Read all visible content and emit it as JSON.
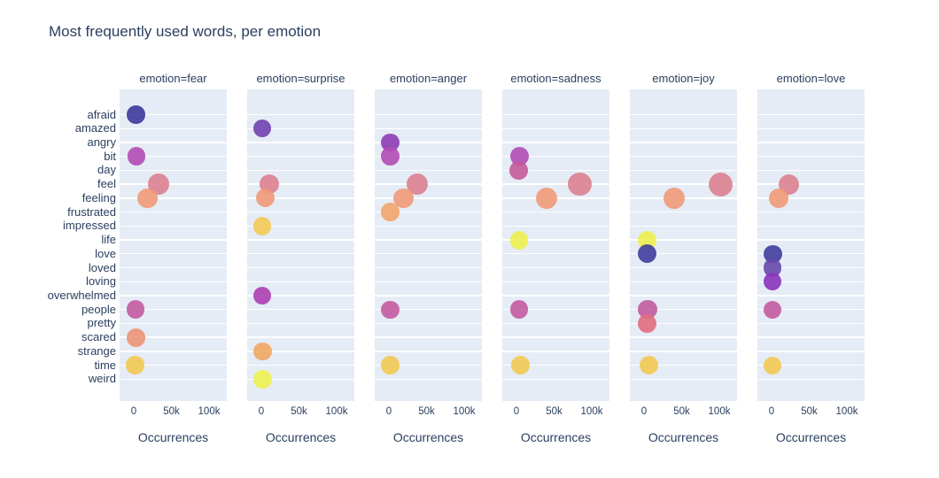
{
  "chart_data": {
    "type": "scatter",
    "title": "Most frequently used words, per emotion",
    "xlabel": "Occurrences",
    "x_ticks": [
      {
        "label": "0",
        "value": 0
      },
      {
        "label": "50k",
        "value": 50000
      },
      {
        "label": "100k",
        "value": 100000
      }
    ],
    "x_range": [
      -19000,
      123000
    ],
    "grid": "horizontal-white-on-lightblue",
    "legend_position": "none",
    "categories": [
      "afraid",
      "amazed",
      "angry",
      "bit",
      "day",
      "feel",
      "feeling",
      "frustrated",
      "impressed",
      "life",
      "love",
      "loved",
      "loving",
      "overwhelmed",
      "people",
      "pretty",
      "scared",
      "strange",
      "time",
      "weird"
    ],
    "word_colors": {
      "afraid": "#3e3a9c",
      "amazed": "#6f41b0",
      "angry": "#8c3cb6",
      "bit": "#b14db4",
      "day": "#c45a9b",
      "feel": "#dc8190",
      "feeling": "#ef9a78",
      "frustrated": "#f2a56a",
      "impressed": "#f3ca57",
      "life": "#ecf14f",
      "love": "#3f3d9e",
      "loved": "#654aab",
      "loving": "#8a34bb",
      "overwhelmed": "#ab3fb1",
      "people": "#c35ba0",
      "pretty": "#e06d80",
      "scared": "#ec9476",
      "strange": "#f1a763",
      "time": "#f2c952",
      "weird": "#edf150"
    },
    "facets": [
      {
        "label": "emotion=fear",
        "emotion": "fear",
        "points": [
          {
            "word": "afraid",
            "occurrences": 2700
          },
          {
            "word": "bit",
            "occurrences": 3500
          },
          {
            "word": "feel",
            "occurrences": 33000
          },
          {
            "word": "feeling",
            "occurrences": 18500
          },
          {
            "word": "people",
            "occurrences": 2400
          },
          {
            "word": "scared",
            "occurrences": 3200
          },
          {
            "word": "time",
            "occurrences": 2100
          }
        ]
      },
      {
        "label": "emotion=surprise",
        "emotion": "surprise",
        "points": [
          {
            "word": "amazed",
            "occurrences": 1200
          },
          {
            "word": "feel",
            "occurrences": 11000
          },
          {
            "word": "feeling",
            "occurrences": 5100
          },
          {
            "word": "impressed",
            "occurrences": 1300
          },
          {
            "word": "overwhelmed",
            "occurrences": 1200
          },
          {
            "word": "strange",
            "occurrences": 2000
          },
          {
            "word": "weird",
            "occurrences": 2000
          }
        ]
      },
      {
        "label": "emotion=anger",
        "emotion": "anger",
        "points": [
          {
            "word": "angry",
            "occurrences": 1700
          },
          {
            "word": "bit",
            "occurrences": 1800
          },
          {
            "word": "feel",
            "occurrences": 38000
          },
          {
            "word": "feeling",
            "occurrences": 19000
          },
          {
            "word": "frustrated",
            "occurrences": 1600
          },
          {
            "word": "people",
            "occurrences": 1600
          },
          {
            "word": "time",
            "occurrences": 1900
          }
        ]
      },
      {
        "label": "emotion=sadness",
        "emotion": "sadness",
        "points": [
          {
            "word": "bit",
            "occurrences": 3600
          },
          {
            "word": "day",
            "occurrences": 2700
          },
          {
            "word": "feel",
            "occurrences": 84000
          },
          {
            "word": "feeling",
            "occurrences": 40000
          },
          {
            "word": "life",
            "occurrences": 3500
          },
          {
            "word": "people",
            "occurrences": 3500
          },
          {
            "word": "time",
            "occurrences": 5500
          }
        ]
      },
      {
        "label": "emotion=joy",
        "emotion": "joy",
        "points": [
          {
            "word": "feel",
            "occurrences": 102000
          },
          {
            "word": "feeling",
            "occurrences": 40000
          },
          {
            "word": "life",
            "occurrences": 3600
          },
          {
            "word": "love",
            "occurrences": 4400
          },
          {
            "word": "people",
            "occurrences": 4700
          },
          {
            "word": "pretty",
            "occurrences": 3600
          },
          {
            "word": "time",
            "occurrences": 6300
          }
        ]
      },
      {
        "label": "emotion=love",
        "emotion": "love",
        "points": [
          {
            "word": "feel",
            "occurrences": 23000
          },
          {
            "word": "feeling",
            "occurrences": 9500
          },
          {
            "word": "love",
            "occurrences": 1600
          },
          {
            "word": "loved",
            "occurrences": 1100
          },
          {
            "word": "loving",
            "occurrences": 800
          },
          {
            "word": "people",
            "occurrences": 700
          },
          {
            "word": "time",
            "occurrences": 900
          }
        ]
      }
    ],
    "colors": {
      "panel_background": "#e5ecf6",
      "gridline": "#ffffff",
      "text": "#2a3f5f",
      "page_background": "#ffffff"
    }
  }
}
